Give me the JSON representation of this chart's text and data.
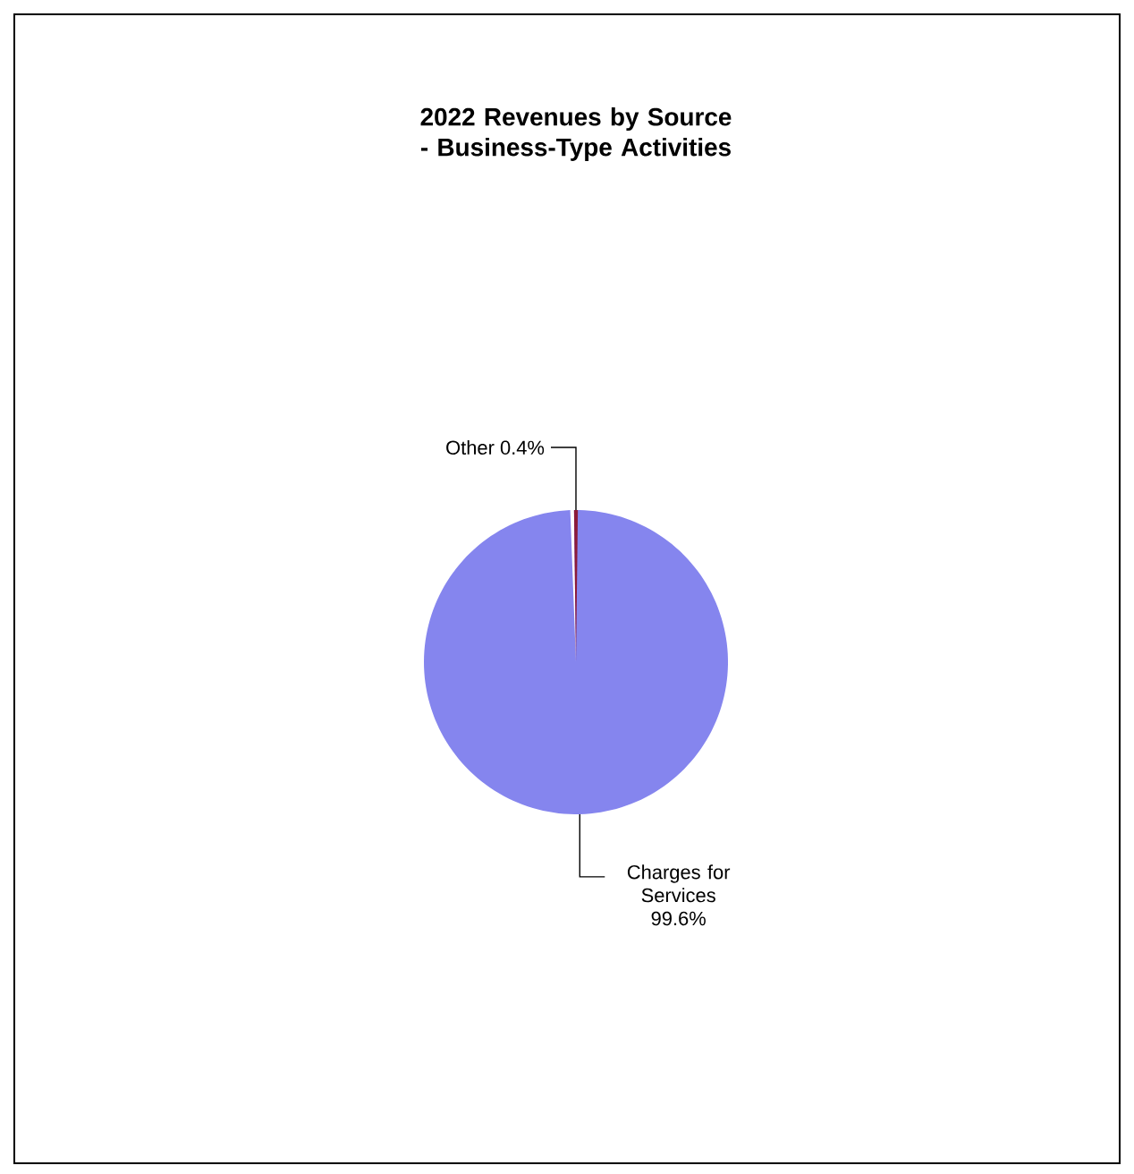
{
  "chart_data": {
    "type": "pie",
    "title": "2022 Revenues by Source - Business-Type Activities",
    "categories": [
      "Charges for Services",
      "Other"
    ],
    "values": [
      99.6,
      0.4
    ],
    "value_labels": [
      "99.6%",
      "0.4%"
    ],
    "colors": [
      "#8585ee",
      "#8b1a3a"
    ]
  }
}
